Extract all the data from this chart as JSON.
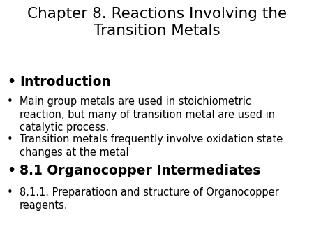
{
  "title_line1": "Chapter 8. Reactions Involving the",
  "title_line2": "Transition Metals",
  "background_color": "#ffffff",
  "text_color": "#000000",
  "title_fontsize": 15.5,
  "title_fontweight": "normal",
  "bullet_items": [
    {
      "text": "Introduction",
      "bold": true,
      "large": true,
      "fontsize": 13.5
    },
    {
      "text": "Main group metals are used in stoichiometric\nreaction, but many of transition metal are used in\ncatalytic process.",
      "bold": false,
      "large": false,
      "fontsize": 10.5
    },
    {
      "text": "Transition metals frequently involve oxidation state\nchanges at the metal",
      "bold": false,
      "large": false,
      "fontsize": 10.5
    },
    {
      "text": "8.1 Organocopper Intermediates",
      "bold": true,
      "large": true,
      "fontsize": 13.5
    },
    {
      "text": "8.1.1. Preparatioon and structure of Organocopper\nreagents.",
      "bold": false,
      "large": false,
      "fontsize": 10.5
    }
  ],
  "bullet_char": "•",
  "fig_width": 4.5,
  "fig_height": 3.38,
  "dpi": 100
}
